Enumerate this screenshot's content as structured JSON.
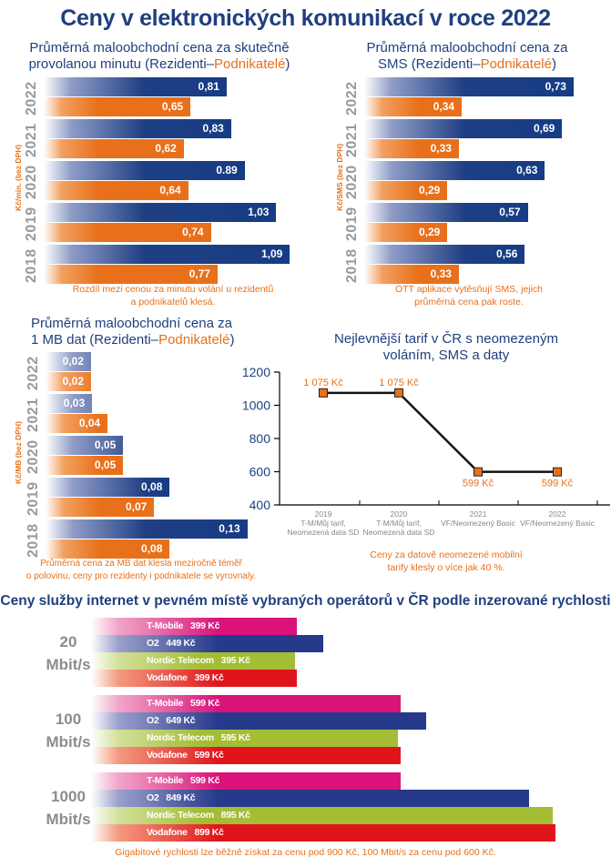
{
  "page": {
    "title": "Ceny v elektronických komunikací v roce 2022"
  },
  "colors": {
    "residents": "#163c85",
    "business": "#e8701a",
    "title": "#1f3f7e",
    "year_label": "#9a9a9a",
    "tmobile": "#d9137a",
    "o2": "#26398a",
    "nordic": "#a3bd35",
    "vodafone": "#e0151b"
  },
  "chart_data": [
    {
      "id": "minute",
      "type": "bar",
      "orientation": "horizontal",
      "title_part1": "Průměrná maloobchodní cena za skutečně",
      "title_part2": "provolanou minutu (Rezidenti–",
      "title_podn": "Podnikatelé",
      "title_end": ")",
      "ylabel": "Kč/min. (bez DPH)",
      "categories": [
        "2022",
        "2021",
        "2020",
        "2019",
        "2018"
      ],
      "series": [
        {
          "name": "Rezidenti",
          "values": [
            0.81,
            0.83,
            0.89,
            1.03,
            1.09
          ],
          "labels": [
            "0,81",
            "0,83",
            "0.89",
            "1,03",
            "1,09"
          ]
        },
        {
          "name": "Podnikatelé",
          "values": [
            0.65,
            0.62,
            0.64,
            0.74,
            0.77
          ],
          "labels": [
            "0,65",
            "0,62",
            "0,64",
            "0,74",
            "0,77"
          ]
        }
      ],
      "note_line1": "Rozdíl mezi cenou za minutu volání u rezidentů",
      "note_line2": "a podnikatelů klesá."
    },
    {
      "id": "sms",
      "type": "bar",
      "orientation": "horizontal",
      "title_part1": "Průměrná maloobchodní cena za",
      "title_part2": "SMS (Rezidenti–",
      "title_podn": "Podnikatelé",
      "title_end": ")",
      "ylabel": "Kč/SMS (bez DPH)",
      "categories": [
        "2022",
        "2021",
        "2020",
        "2019",
        "2018"
      ],
      "series": [
        {
          "name": "Rezidenti",
          "values": [
            0.73,
            0.69,
            0.63,
            0.57,
            0.56
          ],
          "labels": [
            "0,73",
            "0,69",
            "0,63",
            "0,57",
            "0,56"
          ]
        },
        {
          "name": "Podnikatelé",
          "values": [
            0.34,
            0.33,
            0.29,
            0.29,
            0.33
          ],
          "labels": [
            "0,34",
            "0,33",
            "0,29",
            "0,29",
            "0,33"
          ]
        }
      ],
      "note_line1": "OTT aplikace vytěsňují SMS, jejich",
      "note_line2": "průměrná cena pak roste."
    },
    {
      "id": "data",
      "type": "bar",
      "orientation": "horizontal",
      "title_part1": "Průměrná maloobchodní cena za",
      "title_part2": "1 MB dat (Rezidenti–",
      "title_podn": "Podnikatelé",
      "title_end": ")",
      "ylabel": "Kč/MB (bez DPH)",
      "categories": [
        "2022",
        "2021",
        "2020",
        "2019",
        "2018"
      ],
      "series": [
        {
          "name": "Rezidenti",
          "values": [
            0.02,
            0.03,
            0.05,
            0.08,
            0.13
          ],
          "labels": [
            "0,02",
            "0,03",
            "0,05",
            "0,08",
            "0,13"
          ]
        },
        {
          "name": "Podnikatelé",
          "values": [
            0.02,
            0.04,
            0.05,
            0.07,
            0.08
          ],
          "labels": [
            "0,02",
            "0,04",
            "0,05",
            "0,07",
            "0,08"
          ]
        }
      ],
      "note_line1": "Průměrná cena za MB dat klesla meziročně téměř",
      "note_line2": "o polovinu, ceny pro rezidenty i podnikatele se vyrovnaly."
    },
    {
      "id": "tariff",
      "type": "line",
      "title_line1": "Nejlevnější tarif v ČR s neomezeným",
      "title_line2": "voláním, SMS a daty",
      "ylim": [
        400,
        1200
      ],
      "yticks": [
        "1200",
        "1000",
        "800",
        "600",
        "400"
      ],
      "ytick_values": [
        1200,
        1000,
        800,
        600,
        400
      ],
      "x": [
        {
          "year": "2019",
          "line2": "T-M/Můj tarif,",
          "line3": "Neomezená data SD"
        },
        {
          "year": "2020",
          "line2": "T-M/Můj tarif,",
          "line3": "Neomezená data SD"
        },
        {
          "year": "2021",
          "line2": "VF/Neomezený Basic",
          "line3": ""
        },
        {
          "year": "2022",
          "line2": "VF/Neomezený Basic",
          "line3": ""
        }
      ],
      "values": [
        1075,
        1075,
        599,
        599
      ],
      "labels": [
        "1 075 Kč",
        "1 075 Kč",
        "599 Kč",
        "599 Kč"
      ],
      "grid": false,
      "note_line1": "Ceny za datově neomezené mobilní",
      "note_line2": "tarify klesly o více jak 40 %."
    },
    {
      "id": "internet",
      "type": "bar",
      "orientation": "horizontal",
      "title": "Ceny služby internet v pevném místě vybraných operátorů v ČR podle inzerované rychlosti",
      "groups": [
        {
          "speed": "20",
          "unit": "Mbit/s",
          "items": [
            {
              "operator": "T-Mobile",
              "price": 399,
              "label": "399 Kč",
              "color_key": "tmobile"
            },
            {
              "operator": "O2",
              "price": 449,
              "label": "449 Kč",
              "color_key": "o2"
            },
            {
              "operator": "Nordic Telecom",
              "price": 395,
              "label": "395 Kč",
              "color_key": "nordic"
            },
            {
              "operator": "Vodafone",
              "price": 399,
              "label": "399 Kč",
              "color_key": "vodafone"
            }
          ]
        },
        {
          "speed": "100",
          "unit": "Mbit/s",
          "items": [
            {
              "operator": "T-Mobile",
              "price": 599,
              "label": "599 Kč",
              "color_key": "tmobile"
            },
            {
              "operator": "O2",
              "price": 649,
              "label": "649 Kč",
              "color_key": "o2"
            },
            {
              "operator": "Nordic Telecom",
              "price": 595,
              "label": "595 Kč",
              "color_key": "nordic"
            },
            {
              "operator": "Vodafone",
              "price": 599,
              "label": "599 Kč",
              "color_key": "vodafone"
            }
          ]
        },
        {
          "speed": "1000",
          "unit": "Mbit/s",
          "items": [
            {
              "operator": "T-Mobile",
              "price": 599,
              "label": "599 Kč",
              "color_key": "tmobile"
            },
            {
              "operator": "O2",
              "price": 849,
              "label": "849 Kč",
              "color_key": "o2"
            },
            {
              "operator": "Nordic Telecom",
              "price": 895,
              "label": "895 Kč",
              "color_key": "nordic"
            },
            {
              "operator": "Vodafone",
              "price": 899,
              "label": "899 Kč",
              "color_key": "vodafone"
            }
          ]
        }
      ],
      "note": "Gigabitové rychlosti lze běžně získat za cenu pod 900 Kč, 100 Mbit/s za cenu pod 600 Kč."
    }
  ]
}
